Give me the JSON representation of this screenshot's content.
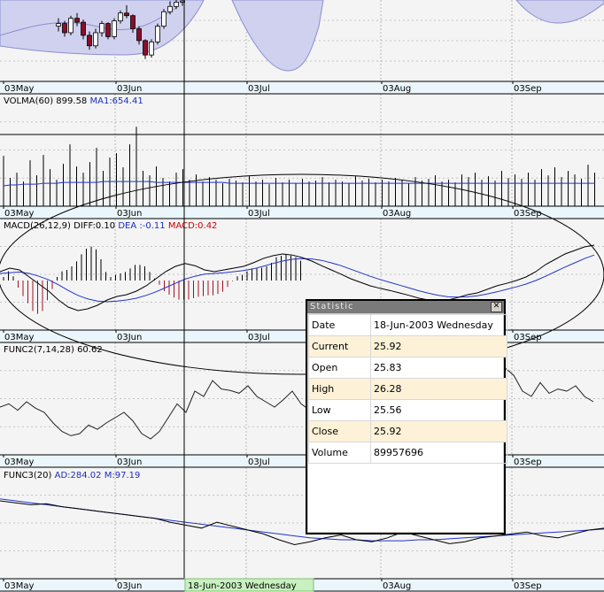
{
  "colors": {
    "panel_bg": "#f4f4f4",
    "axis_strip_bg": "#eaf6fb",
    "band_fill": "#cfd1ee",
    "up_candle": "#ffffff",
    "down_candle": "#8b0d2a",
    "price_line": "#000000",
    "ma_line": "#2233cc",
    "macd_neg_bar": "#a01020",
    "cursor_label_bg": "#c8f0c0"
  },
  "x_axis": {
    "tick_labels": [
      "03May",
      "03Jun",
      "03Jul",
      "03Aug",
      "03Sep"
    ],
    "cursor_date_label": "18-Jun-2003 Wednesday"
  },
  "panels": {
    "volume": {
      "indicator": "VOLMA(60)",
      "value": "899.58",
      "ma_label": "MA1:654.41"
    },
    "macd": {
      "indicator": "MACD(26,12,9)",
      "diff": "DIFF:0.10",
      "dea": "DEA :-0.11",
      "macd": "MACD:0.42"
    },
    "func2": {
      "indicator": "FUNC2(7,14,28)",
      "value": "60.62"
    },
    "func3": {
      "indicator": "FUNC3(20)",
      "ad": "AD:284.02",
      "m": "M:97.19"
    }
  },
  "statistic": {
    "title": "Statistic",
    "close_icon": "close-icon",
    "rows": [
      {
        "key": "Date",
        "value": "18-Jun-2003 Wednesday"
      },
      {
        "key": "Current",
        "value": "25.92"
      },
      {
        "key": "Open",
        "value": "25.83"
      },
      {
        "key": "High",
        "value": "26.28"
      },
      {
        "key": "Low",
        "value": "25.56"
      },
      {
        "key": "Close",
        "value": "25.92"
      },
      {
        "key": "Volume",
        "value": "89957696"
      }
    ]
  },
  "chart_data": [
    {
      "type": "candlestick",
      "name": "price",
      "x": [
        "03May",
        "03Jun",
        "03Jul",
        "03Aug",
        "03Sep"
      ],
      "values": [
        [
          24.0,
          24.6,
          23.6,
          24.2
        ],
        [
          24.2,
          24.4,
          23.2,
          23.5
        ],
        [
          23.5,
          24.8,
          23.3,
          24.6
        ],
        [
          24.6,
          25.0,
          24.0,
          24.3
        ],
        [
          24.3,
          24.5,
          23.0,
          23.3
        ],
        [
          23.3,
          23.6,
          22.2,
          22.5
        ],
        [
          22.5,
          23.8,
          22.3,
          23.5
        ],
        [
          23.5,
          24.4,
          23.2,
          24.2
        ],
        [
          24.2,
          24.3,
          23.0,
          23.2
        ],
        [
          23.2,
          24.6,
          23.0,
          24.4
        ],
        [
          24.4,
          25.2,
          24.2,
          25.0
        ],
        [
          25.0,
          25.6,
          24.6,
          24.8
        ],
        [
          24.8,
          24.9,
          23.5,
          23.8
        ],
        [
          23.8,
          24.0,
          22.6,
          22.9
        ],
        [
          22.9,
          23.0,
          21.5,
          21.8
        ],
        [
          21.8,
          23.0,
          21.6,
          22.8
        ],
        [
          22.8,
          24.2,
          22.6,
          24.0
        ],
        [
          24.0,
          25.3,
          23.8,
          25.1
        ],
        [
          25.1,
          25.9,
          24.9,
          25.5
        ],
        [
          25.5,
          26.1,
          25.3,
          25.83
        ],
        [
          25.83,
          26.28,
          25.56,
          25.92
        ]
      ]
    },
    {
      "type": "bar",
      "name": "volume",
      "values": [
        57,
        32,
        38,
        28,
        52,
        35,
        58,
        42,
        30,
        48,
        70,
        45,
        38,
        50,
        66,
        40,
        55,
        60,
        44,
        70,
        90,
        40,
        35,
        45,
        32,
        28,
        38,
        42,
        30,
        36,
        28,
        33,
        30,
        26,
        31,
        29,
        27,
        34,
        28,
        30,
        25,
        32,
        27,
        30,
        26,
        31,
        28,
        29,
        33,
        27,
        30,
        28,
        26,
        34,
        29,
        31,
        27,
        30,
        28,
        32,
        30,
        26,
        33,
        29,
        31,
        35,
        28,
        30,
        27,
        36,
        33,
        38,
        30,
        34,
        29,
        40,
        32,
        36,
        31,
        38,
        30,
        42,
        35,
        44,
        33,
        40,
        36,
        31,
        47,
        38
      ],
      "ma_values": [
        23,
        24,
        24,
        25,
        25,
        25,
        26,
        26,
        26,
        27,
        27,
        27,
        27,
        27,
        27,
        28,
        28,
        28,
        28,
        28,
        28,
        28,
        28,
        27,
        27,
        27,
        27,
        27,
        27,
        27,
        27,
        27,
        27,
        27,
        26,
        26,
        26,
        26,
        26,
        26,
        26,
        26,
        26,
        26,
        26,
        26,
        26,
        26,
        26,
        26,
        26,
        26,
        26,
        26,
        26,
        26,
        26,
        26,
        26,
        26,
        26,
        26,
        26,
        26,
        26,
        26,
        26,
        26,
        26,
        26,
        26,
        26,
        26,
        26,
        26,
        26,
        26,
        26,
        26,
        26,
        26,
        26,
        26,
        26,
        26,
        26,
        26,
        26,
        26,
        26
      ]
    },
    {
      "type": "line",
      "name": "macd",
      "diff": [
        0.25,
        0.35,
        0.3,
        0.1,
        -0.1,
        -0.3,
        -0.55,
        -0.75,
        -0.85,
        -0.8,
        -0.7,
        -0.55,
        -0.45,
        -0.4,
        -0.3,
        -0.15,
        0.05,
        0.25,
        0.4,
        0.48,
        0.42,
        0.3,
        0.25,
        0.3,
        0.35,
        0.4,
        0.5,
        0.62,
        0.7,
        0.75,
        0.72,
        0.65,
        0.55,
        0.42,
        0.3,
        0.18,
        0.05,
        -0.05,
        -0.15,
        -0.22,
        -0.28,
        -0.35,
        -0.42,
        -0.5,
        -0.55,
        -0.58,
        -0.55,
        -0.48,
        -0.4,
        -0.35,
        -0.25,
        -0.15,
        -0.08,
        0.0,
        0.1,
        0.25,
        0.45,
        0.6,
        0.75,
        0.85,
        0.95,
        1.0
      ],
      "dea": [
        0.2,
        0.22,
        0.24,
        0.2,
        0.12,
        0.02,
        -0.12,
        -0.28,
        -0.42,
        -0.52,
        -0.58,
        -0.6,
        -0.58,
        -0.55,
        -0.5,
        -0.42,
        -0.32,
        -0.2,
        -0.08,
        0.04,
        0.12,
        0.18,
        0.2,
        0.22,
        0.25,
        0.28,
        0.33,
        0.4,
        0.48,
        0.55,
        0.6,
        0.62,
        0.61,
        0.57,
        0.5,
        0.42,
        0.32,
        0.22,
        0.12,
        0.03,
        -0.05,
        -0.13,
        -0.21,
        -0.29,
        -0.36,
        -0.42,
        -0.46,
        -0.47,
        -0.46,
        -0.43,
        -0.38,
        -0.32,
        -0.25,
        -0.18,
        -0.1,
        0.0,
        0.12,
        0.25,
        0.38,
        0.5,
        0.62,
        0.72
      ],
      "bars": [
        0.1,
        0.26,
        0.12,
        -0.2,
        -0.44,
        -0.64,
        -0.86,
        -0.94,
        -0.86,
        -0.56,
        -0.24,
        0.1,
        0.26,
        0.3,
        0.4,
        0.54,
        0.74,
        0.9,
        0.96,
        0.88,
        0.6,
        0.24,
        0.1,
        0.16,
        0.2,
        0.24,
        0.34,
        0.44,
        0.44,
        0.4,
        0.24,
        0.06,
        -0.12,
        -0.3,
        -0.4,
        -0.48,
        -0.54,
        -0.54,
        -0.54,
        -0.5,
        -0.46,
        -0.44,
        -0.42,
        -0.42,
        -0.38,
        -0.32,
        -0.18,
        -0.02,
        0.12,
        0.16,
        0.26,
        0.34,
        0.34,
        0.36,
        0.4,
        0.5,
        0.66,
        0.7,
        0.74,
        0.7,
        0.66,
        0.56
      ]
    },
    {
      "type": "line",
      "name": "func2",
      "values": [
        45,
        48,
        42,
        50,
        44,
        40,
        30,
        22,
        18,
        20,
        28,
        24,
        30,
        35,
        40,
        32,
        20,
        15,
        22,
        35,
        48,
        40,
        60,
        55,
        70,
        62,
        60.62,
        58,
        65,
        55,
        50,
        45,
        52,
        60,
        48,
        42,
        50,
        55,
        45,
        40,
        48,
        52,
        46,
        50,
        44,
        42,
        48,
        55,
        50,
        46,
        52,
        48,
        44,
        50,
        55,
        48,
        70,
        82,
        75,
        60,
        55,
        68,
        58,
        62,
        60,
        65,
        55,
        50
      ]
    },
    {
      "type": "line",
      "name": "func3",
      "values": [
        80,
        78,
        76,
        77,
        74,
        72,
        70,
        68,
        66,
        64,
        62,
        58,
        55,
        52,
        58,
        54,
        50,
        46,
        40,
        35,
        38,
        42,
        45,
        40,
        38,
        42,
        48,
        44,
        40,
        36,
        38,
        42,
        44,
        46,
        48,
        44,
        42,
        46,
        50,
        52
      ],
      "ma_values": [
        82,
        80,
        78,
        76,
        74,
        72,
        70,
        68,
        66,
        64,
        62,
        60,
        58,
        56,
        54,
        52,
        50,
        48,
        46,
        44,
        42,
        41,
        40,
        40,
        39,
        39,
        39,
        40,
        40,
        41,
        42,
        43,
        44,
        45,
        46,
        47,
        48,
        49,
        50,
        51
      ]
    }
  ]
}
